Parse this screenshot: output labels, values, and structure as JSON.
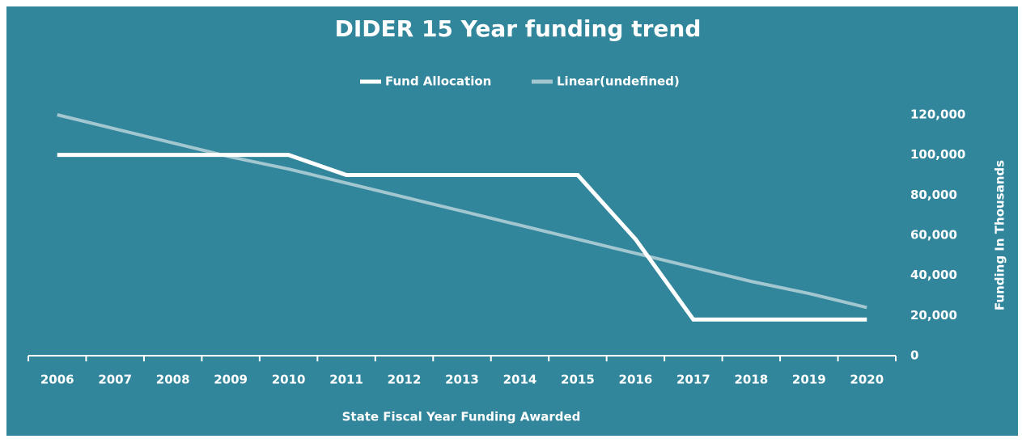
{
  "chart_data": {
    "type": "line",
    "title": "DIDER 15 Year funding trend",
    "x_label": "State Fiscal Year Funding Awarded",
    "y_label": "Funding In Thousands",
    "categories": [
      "2006",
      "2007",
      "2008",
      "2009",
      "2010",
      "2011",
      "2012",
      "2013",
      "2014",
      "2015",
      "2016",
      "2017",
      "2018",
      "2019",
      "2020"
    ],
    "series": [
      {
        "name": "Fund Allocation",
        "color": "#ffffff",
        "values": [
          100000,
          100000,
          100000,
          100000,
          100000,
          90000,
          90000,
          90000,
          90000,
          90000,
          58000,
          18000,
          18000,
          18000,
          18000
        ]
      },
      {
        "name": "Linear(undefined)",
        "color": "#a3c7d0",
        "values": [
          120000,
          113000,
          106000,
          99000,
          93000,
          86000,
          79000,
          72000,
          65000,
          58000,
          51000,
          44000,
          37000,
          31000,
          24000
        ]
      }
    ],
    "ylim": [
      0,
      120000
    ],
    "yticks": [
      0,
      {
        "value": 20000,
        "label": "20,000"
      },
      {
        "value": 40000,
        "label": "40,000"
      },
      {
        "value": 60000,
        "label": "60,000"
      },
      {
        "value": 80000,
        "label": "80,000"
      },
      {
        "value": 100000,
        "label": "100,000"
      },
      {
        "value": 120000,
        "label": "120,000"
      }
    ],
    "y_axis_side": "right",
    "legend": "top",
    "background": "#31869b",
    "grid": false
  }
}
